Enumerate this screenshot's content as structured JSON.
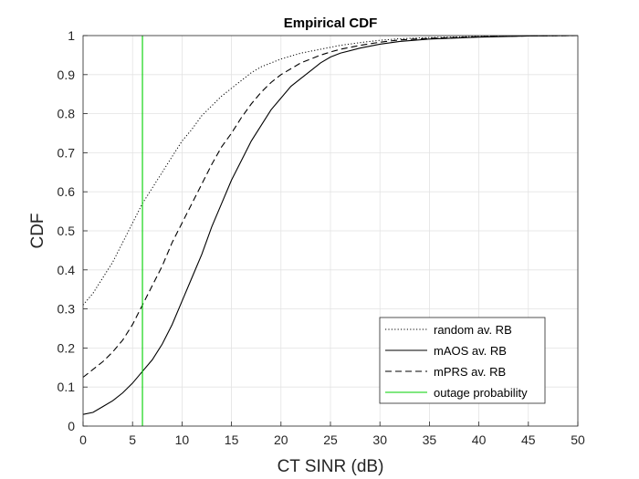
{
  "chart_data": {
    "type": "line",
    "title": "Empirical CDF",
    "xlabel": "CT SINR (dB)",
    "ylabel": "CDF",
    "xlim": [
      0,
      50
    ],
    "ylim": [
      0,
      1
    ],
    "xticks": [
      0,
      5,
      10,
      15,
      20,
      25,
      30,
      35,
      40,
      45,
      50
    ],
    "yticks": [
      0,
      0.1,
      0.2,
      0.3,
      0.4,
      0.5,
      0.6,
      0.7,
      0.8,
      0.9,
      1
    ],
    "grid": true,
    "legend_position": "bottom-right",
    "series": [
      {
        "name": "random av. RB",
        "style": "dotted",
        "color": "#000000",
        "points": [
          [
            0,
            0.31
          ],
          [
            1,
            0.34
          ],
          [
            2,
            0.38
          ],
          [
            3,
            0.42
          ],
          [
            4,
            0.47
          ],
          [
            5,
            0.52
          ],
          [
            6,
            0.57
          ],
          [
            7,
            0.61
          ],
          [
            8,
            0.65
          ],
          [
            9,
            0.69
          ],
          [
            10,
            0.73
          ],
          [
            11,
            0.76
          ],
          [
            12,
            0.795
          ],
          [
            13,
            0.82
          ],
          [
            14,
            0.845
          ],
          [
            15,
            0.865
          ],
          [
            16,
            0.885
          ],
          [
            17,
            0.905
          ],
          [
            18,
            0.92
          ],
          [
            19,
            0.93
          ],
          [
            20,
            0.94
          ],
          [
            22,
            0.955
          ],
          [
            24,
            0.965
          ],
          [
            26,
            0.975
          ],
          [
            28,
            0.982
          ],
          [
            30,
            0.988
          ],
          [
            32,
            0.992
          ],
          [
            35,
            0.995
          ],
          [
            40,
            0.998
          ],
          [
            45,
            0.999
          ],
          [
            50,
            1.0
          ]
        ]
      },
      {
        "name": "mAOS av. RB",
        "style": "solid",
        "color": "#000000",
        "points": [
          [
            0,
            0.03
          ],
          [
            1,
            0.035
          ],
          [
            2,
            0.05
          ],
          [
            3,
            0.065
          ],
          [
            4,
            0.085
          ],
          [
            5,
            0.11
          ],
          [
            6,
            0.14
          ],
          [
            7,
            0.17
          ],
          [
            8,
            0.21
          ],
          [
            9,
            0.26
          ],
          [
            10,
            0.32
          ],
          [
            11,
            0.38
          ],
          [
            12,
            0.44
          ],
          [
            13,
            0.51
          ],
          [
            14,
            0.57
          ],
          [
            15,
            0.63
          ],
          [
            16,
            0.68
          ],
          [
            17,
            0.73
          ],
          [
            18,
            0.77
          ],
          [
            19,
            0.81
          ],
          [
            20,
            0.84
          ],
          [
            21,
            0.87
          ],
          [
            22,
            0.89
          ],
          [
            23,
            0.91
          ],
          [
            24,
            0.93
          ],
          [
            25,
            0.945
          ],
          [
            26,
            0.955
          ],
          [
            28,
            0.968
          ],
          [
            30,
            0.978
          ],
          [
            32,
            0.985
          ],
          [
            35,
            0.991
          ],
          [
            40,
            0.996
          ],
          [
            45,
            0.999
          ],
          [
            50,
            1.0
          ]
        ]
      },
      {
        "name": "mPRS av. RB",
        "style": "dashed",
        "color": "#000000",
        "points": [
          [
            0,
            0.125
          ],
          [
            1,
            0.145
          ],
          [
            2,
            0.165
          ],
          [
            3,
            0.19
          ],
          [
            4,
            0.22
          ],
          [
            5,
            0.26
          ],
          [
            6,
            0.31
          ],
          [
            7,
            0.36
          ],
          [
            8,
            0.41
          ],
          [
            9,
            0.47
          ],
          [
            10,
            0.52
          ],
          [
            11,
            0.57
          ],
          [
            12,
            0.62
          ],
          [
            13,
            0.67
          ],
          [
            14,
            0.715
          ],
          [
            15,
            0.75
          ],
          [
            16,
            0.79
          ],
          [
            17,
            0.825
          ],
          [
            18,
            0.855
          ],
          [
            19,
            0.88
          ],
          [
            20,
            0.9
          ],
          [
            21,
            0.915
          ],
          [
            22,
            0.93
          ],
          [
            23,
            0.94
          ],
          [
            24,
            0.95
          ],
          [
            25,
            0.958
          ],
          [
            26,
            0.965
          ],
          [
            28,
            0.975
          ],
          [
            30,
            0.983
          ],
          [
            32,
            0.989
          ],
          [
            35,
            0.993
          ],
          [
            40,
            0.997
          ],
          [
            45,
            0.999
          ],
          [
            50,
            1.0
          ]
        ]
      },
      {
        "name": "outage probability",
        "style": "solid",
        "color": "#00d000",
        "points": [
          [
            6,
            0
          ],
          [
            6,
            1
          ]
        ]
      }
    ]
  }
}
